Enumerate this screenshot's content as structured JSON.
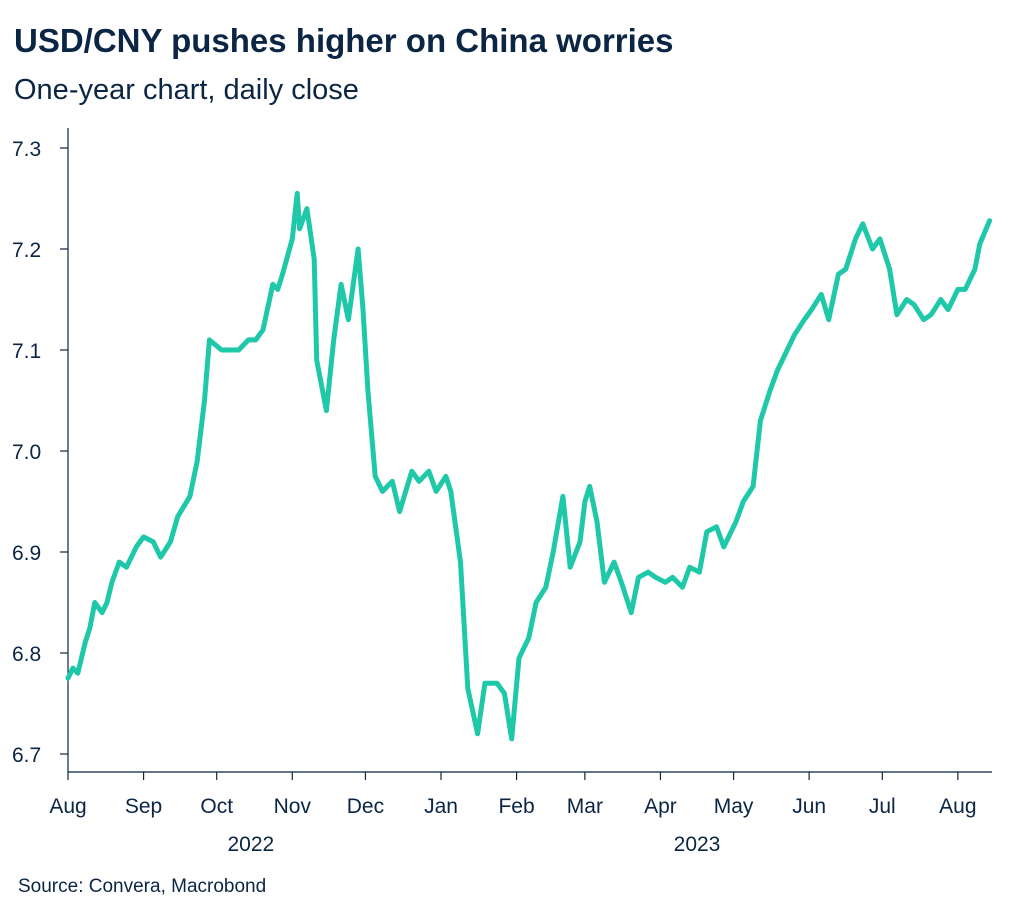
{
  "title": "USD/CNY pushes higher on China worries",
  "subtitle": "One-year chart, daily close",
  "source": "Source: Convera, Macrobond",
  "chart_data": {
    "type": "line",
    "title": "USD/CNY pushes higher on China worries",
    "subtitle": "One-year chart, daily close",
    "xlabel": "",
    "ylabel": "",
    "ylim": [
      6.7,
      7.3
    ],
    "yticks": [
      6.7,
      6.8,
      6.9,
      7.0,
      7.1,
      7.2,
      7.3
    ],
    "ytick_labels": [
      "6.7",
      "6.8",
      "6.9",
      "7.0",
      "7.1",
      "7.2",
      "7.3"
    ],
    "xlim": [
      "2022-08-01",
      "2023-08-15"
    ],
    "month_ticks": [
      "2022-08-01",
      "2022-09-01",
      "2022-10-01",
      "2022-11-01",
      "2022-12-01",
      "2023-01-01",
      "2023-02-01",
      "2023-03-01",
      "2023-04-01",
      "2023-05-01",
      "2023-06-01",
      "2023-07-01",
      "2023-08-01"
    ],
    "month_labels": [
      "Aug",
      "Sep",
      "Oct",
      "Nov",
      "Dec",
      "Jan",
      "Feb",
      "Mar",
      "Apr",
      "May",
      "Jun",
      "Jul",
      "Aug"
    ],
    "year_labels": [
      {
        "label": "2022",
        "date": "2022-10-15"
      },
      {
        "label": "2023",
        "date": "2023-04-16"
      }
    ],
    "grid": false,
    "line_color": "#1ec8a8",
    "series": [
      {
        "x": [
          "2022-08-01",
          "2022-08-03",
          "2022-08-05",
          "2022-08-08",
          "2022-08-10",
          "2022-08-12",
          "2022-08-15",
          "2022-08-17",
          "2022-08-19",
          "2022-08-22",
          "2022-08-25",
          "2022-08-29",
          "2022-09-01",
          "2022-09-05",
          "2022-09-08",
          "2022-09-12",
          "2022-09-15",
          "2022-09-20",
          "2022-09-23",
          "2022-09-26",
          "2022-09-28",
          "2022-10-03",
          "2022-10-10",
          "2022-10-14",
          "2022-10-17",
          "2022-10-20",
          "2022-10-24",
          "2022-10-26",
          "2022-10-28",
          "2022-11-01",
          "2022-11-03",
          "2022-11-04",
          "2022-11-07",
          "2022-11-10",
          "2022-11-11",
          "2022-11-15",
          "2022-11-18",
          "2022-11-21",
          "2022-11-24",
          "2022-11-28",
          "2022-11-30",
          "2022-12-02",
          "2022-12-05",
          "2022-12-08",
          "2022-12-12",
          "2022-12-15",
          "2022-12-20",
          "2022-12-23",
          "2022-12-27",
          "2022-12-30",
          "2023-01-03",
          "2023-01-05",
          "2023-01-09",
          "2023-01-12",
          "2023-01-16",
          "2023-01-19",
          "2023-01-24",
          "2023-01-27",
          "2023-01-30",
          "2023-02-02",
          "2023-02-06",
          "2023-02-09",
          "2023-02-13",
          "2023-02-16",
          "2023-02-20",
          "2023-02-23",
          "2023-02-27",
          "2023-03-01",
          "2023-03-03",
          "2023-03-06",
          "2023-03-09",
          "2023-03-13",
          "2023-03-16",
          "2023-03-20",
          "2023-03-23",
          "2023-03-27",
          "2023-03-30",
          "2023-04-03",
          "2023-04-06",
          "2023-04-10",
          "2023-04-13",
          "2023-04-17",
          "2023-04-20",
          "2023-04-24",
          "2023-04-27",
          "2023-05-02",
          "2023-05-05",
          "2023-05-09",
          "2023-05-12",
          "2023-05-16",
          "2023-05-19",
          "2023-05-23",
          "2023-05-26",
          "2023-05-30",
          "2023-06-02",
          "2023-06-06",
          "2023-06-09",
          "2023-06-13",
          "2023-06-16",
          "2023-06-20",
          "2023-06-23",
          "2023-06-27",
          "2023-06-30",
          "2023-07-04",
          "2023-07-07",
          "2023-07-11",
          "2023-07-14",
          "2023-07-18",
          "2023-07-21",
          "2023-07-25",
          "2023-07-28",
          "2023-08-01",
          "2023-08-04",
          "2023-08-08",
          "2023-08-10",
          "2023-08-14"
        ],
        "y": [
          6.775,
          6.785,
          6.78,
          6.81,
          6.825,
          6.85,
          6.84,
          6.85,
          6.87,
          6.89,
          6.885,
          6.905,
          6.915,
          6.91,
          6.895,
          6.91,
          6.935,
          6.955,
          6.99,
          7.05,
          7.11,
          7.1,
          7.1,
          7.11,
          7.11,
          7.12,
          7.165,
          7.16,
          7.175,
          7.21,
          7.255,
          7.22,
          7.24,
          7.19,
          7.09,
          7.04,
          7.11,
          7.165,
          7.13,
          7.2,
          7.14,
          7.06,
          6.975,
          6.96,
          6.97,
          6.94,
          6.98,
          6.97,
          6.98,
          6.96,
          6.975,
          6.96,
          6.89,
          6.765,
          6.72,
          6.77,
          6.77,
          6.76,
          6.715,
          6.795,
          6.815,
          6.85,
          6.865,
          6.9,
          6.955,
          6.885,
          6.91,
          6.95,
          6.965,
          6.93,
          6.87,
          6.89,
          6.87,
          6.84,
          6.875,
          6.88,
          6.875,
          6.87,
          6.875,
          6.865,
          6.885,
          6.88,
          6.92,
          6.925,
          6.905,
          6.93,
          6.95,
          6.965,
          7.03,
          7.06,
          7.08,
          7.1,
          7.115,
          7.13,
          7.14,
          7.155,
          7.13,
          7.175,
          7.18,
          7.21,
          7.225,
          7.2,
          7.21,
          7.18,
          7.135,
          7.15,
          7.145,
          7.13,
          7.135,
          7.15,
          7.14,
          7.16,
          7.16,
          7.18,
          7.205,
          7.228
        ]
      }
    ]
  }
}
